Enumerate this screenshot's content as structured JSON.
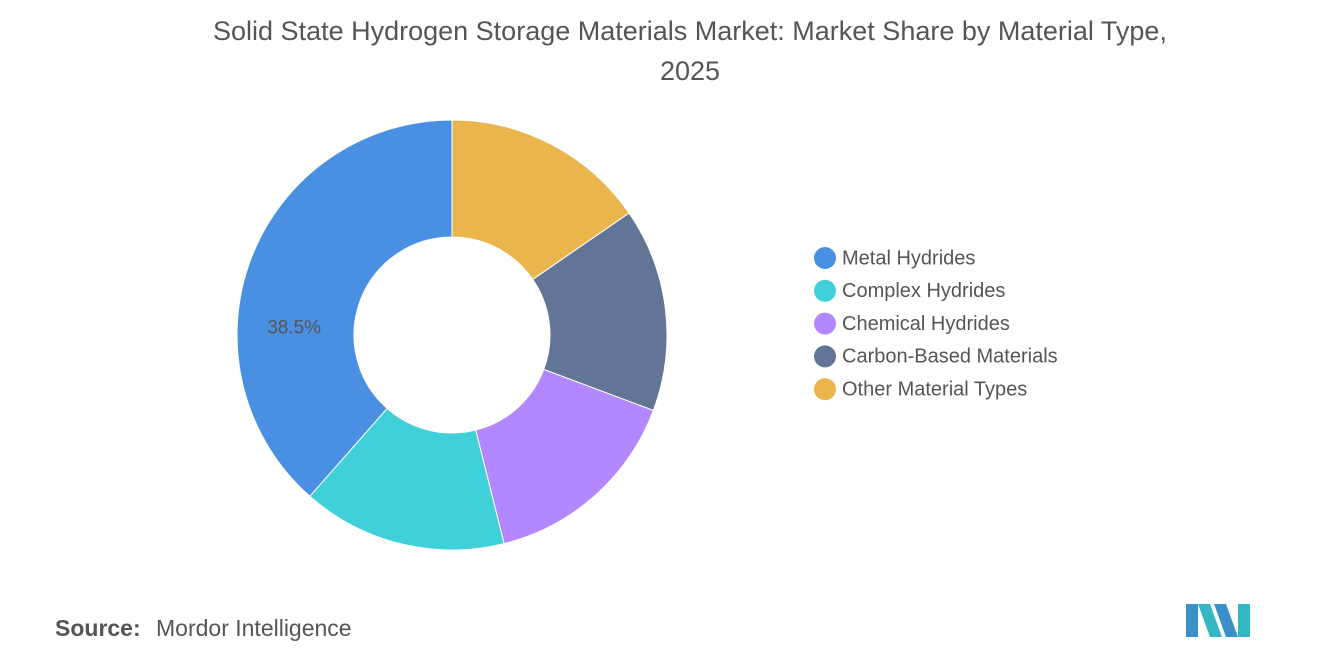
{
  "chart_data": {
    "type": "donut",
    "title": [
      "Solid State Hydrogen Storage Materials Market: Market Share by Material Type,",
      "2025"
    ],
    "categories": [
      "Metal Hydrides",
      "Complex Hydrides",
      "Chemical Hydrides",
      "Carbon-Based Materials",
      "Other Material Types"
    ],
    "values": [
      38.5,
      15.4,
      15.4,
      15.3,
      15.4
    ],
    "value_labels": [
      "38.5%",
      null,
      null,
      null,
      null
    ],
    "colors": [
      "#4a90e2",
      "#3fd0d9",
      "#b388ff",
      "#637596",
      "#eab54c"
    ]
  },
  "source": {
    "label": "Source:",
    "text": "Mordor Intelligence"
  }
}
